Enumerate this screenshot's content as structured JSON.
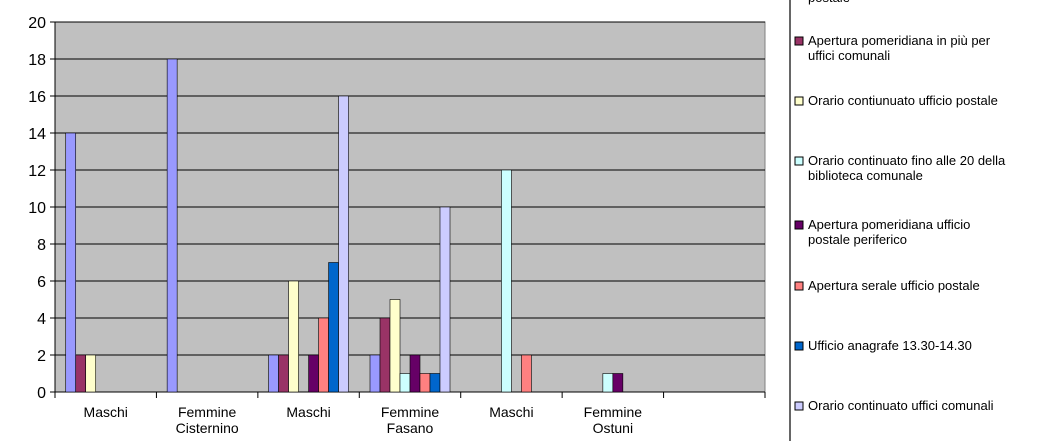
{
  "chart_data": {
    "type": "bar",
    "title": "",
    "xlabel": "",
    "ylabel": "",
    "ylim": [
      0,
      20
    ],
    "yticks": [
      0,
      2,
      4,
      6,
      8,
      10,
      12,
      14,
      16,
      18,
      20
    ],
    "grid": true,
    "legend_position": "right",
    "plot_background": "#c0c0c0",
    "categories": [
      [
        "Maschi"
      ],
      [
        "Femmine",
        "Cisternino"
      ],
      [
        "Maschi"
      ],
      [
        "Femmine",
        "Fasano"
      ],
      [
        "Maschi"
      ],
      [
        "Femmine",
        "Ostuni"
      ],
      [
        ""
      ]
    ],
    "series": [
      {
        "name": "Orario continuato ufficio postale",
        "color": "#9999ff",
        "values": [
          14,
          18,
          2,
          2,
          0,
          0,
          0
        ]
      },
      {
        "name": "Apertura pomeridiana in più per uffici comunali",
        "color": "#993366",
        "values": [
          2,
          0,
          2,
          4,
          0,
          0,
          0
        ]
      },
      {
        "name": "Orario contiunuato ufficio postale",
        "color": "#ffffcc",
        "values": [
          2,
          0,
          6,
          5,
          0,
          0,
          0
        ]
      },
      {
        "name": "Orario continuato fino alle 20 della biblioteca comunale",
        "color": "#ccffff",
        "values": [
          0,
          0,
          0,
          1,
          12,
          1,
          0
        ]
      },
      {
        "name": "Apertura pomeridiana ufficio postale periferico",
        "color": "#660066",
        "values": [
          0,
          0,
          2,
          2,
          0,
          1,
          0
        ]
      },
      {
        "name": "Apertura serale ufficio postale",
        "color": "#ff8080",
        "values": [
          0,
          0,
          4,
          1,
          2,
          0,
          0
        ]
      },
      {
        "name": "Ufficio anagrafe 13.30-14.30",
        "color": "#0066cc",
        "values": [
          0,
          0,
          7,
          1,
          0,
          0,
          0
        ]
      },
      {
        "name": "Orario continuato uffici comunali",
        "color": "#ccccff",
        "values": [
          0,
          0,
          16,
          10,
          0,
          0,
          0
        ]
      }
    ],
    "legend_labels": [
      [
        "postale"
      ],
      [
        "Apertura pomeridiana in più per",
        "uffici comunali"
      ],
      [
        "Orario contiunuato ufficio postale"
      ],
      [
        "Orario continuato fino alle 20 della",
        "biblioteca comunale"
      ],
      [
        "Apertura pomeridiana ufficio",
        "postale periferico"
      ],
      [
        "Apertura serale ufficio postale"
      ],
      [
        "Ufficio anagrafe 13.30-14.30"
      ],
      [
        "Orario continuato uffici comunali"
      ]
    ]
  }
}
